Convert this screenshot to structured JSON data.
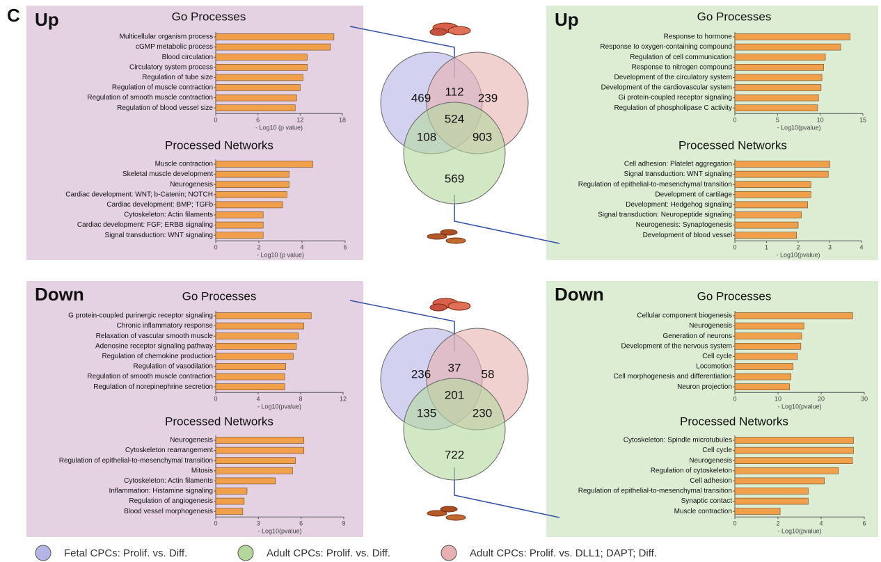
{
  "figure_label": "C",
  "panels": [
    {
      "heading": "Up"
    },
    {
      "heading": "Up"
    },
    {
      "heading": "Down"
    },
    {
      "heading": "Down"
    }
  ],
  "chart_data": [
    {
      "type": "barh",
      "title": "Go Processes",
      "x_label": "- Log10 (p value)",
      "color": "#f0a04a",
      "categories": [
        "Multicellular organism process",
        "cGMP metabolic process",
        "Blood circulation",
        "Circulatory system process",
        "Regulation of tube size",
        "Regulation of muscle contraction",
        "Regulation of smooth muscle contraction",
        "Regulation of blood vessel size"
      ],
      "values": [
        16.8,
        16.3,
        13.0,
        13.0,
        12.4,
        12.0,
        11.5,
        11.3
      ],
      "xlim": [
        0,
        18
      ],
      "xticks": [
        0,
        6,
        12,
        18
      ]
    },
    {
      "type": "barh",
      "title": "Processed Networks",
      "x_label": "- Log10 (p value)",
      "color": "#f0a04a",
      "categories": [
        "Muscle contraction",
        "Skeletal muscle development",
        "Neurogenesis",
        "Cardiac development: WNT; b-Catenin; NOTCH",
        "Cardiac development: BMP; TGFb",
        "Cytoskeleton: Actin filaments",
        "Cardiac development: FGF; ERBB signaling",
        "Signal transduction: WNT signaling"
      ],
      "values": [
        4.5,
        3.4,
        3.4,
        3.3,
        3.1,
        2.2,
        2.2,
        2.2
      ],
      "xlim": [
        0,
        6
      ],
      "xticks": [
        0,
        2,
        4,
        6
      ]
    },
    {
      "type": "barh",
      "title": "Go Processes",
      "x_label": "- Log10(pvalue)",
      "color": "#f0a04a",
      "categories": [
        "Response to hormone",
        "Response to oxygen-containing compound",
        "Regulation of cell communication",
        "Response to nitrogen compound",
        "Development of the circulatory system",
        "Development of the cardiovascular system",
        "Gi protein-coupled receptor signaling",
        "Regulation of phospholipase C activity"
      ],
      "values": [
        13.5,
        12.4,
        10.6,
        10.4,
        10.2,
        10.1,
        9.8,
        9.7
      ],
      "xlim": [
        0,
        15
      ],
      "xticks": [
        0,
        5,
        10,
        15
      ]
    },
    {
      "type": "barh",
      "title": "Processed Networks",
      "x_label": "- Log10(pvalue)",
      "color": "#f0a04a",
      "categories": [
        "Cell adhesion: Platelet aggregation",
        "Signal transduction: WNT signaling",
        "Regulation of epithelial-to-mesenchymal transition",
        "Development of cartilage",
        "Development: Hedgehog signaling",
        "Signal transduction: Neuropeptide signaling",
        "Neurogenesis: Synaptogenesis",
        "Development of blood vessel"
      ],
      "values": [
        3.0,
        2.95,
        2.4,
        2.4,
        2.3,
        2.1,
        2.0,
        1.95
      ],
      "xlim": [
        0,
        4
      ],
      "xticks": [
        0,
        1,
        2,
        3,
        4
      ]
    },
    {
      "type": "barh",
      "title": "Go Processes",
      "x_label": "- Log10(pvalue)",
      "color": "#f0a04a",
      "categories": [
        "G protein-coupled purinergic receptor signaling",
        "Chronic inflammatory response",
        "Relaxation of vascular smooth muscle",
        "Adenosine receptor signaling pathway",
        "Regulation of chemokine production",
        "Regulation of vasodilation",
        "Regulation of smooth muscle contraction",
        "Regulation of norepinephrine secretion"
      ],
      "values": [
        9.0,
        8.3,
        7.8,
        7.6,
        7.3,
        6.6,
        6.5,
        6.5
      ],
      "xlim": [
        0,
        12
      ],
      "xticks": [
        0,
        4,
        8,
        12
      ]
    },
    {
      "type": "barh",
      "title": "Processed Networks",
      "x_label": "- Log10(pvalue)",
      "color": "#f0a04a",
      "categories": [
        "Neurogenesis",
        "Cytoskeleton rearrangement",
        "Regulation of epithelial-to-mesenchymal transition",
        "Mitosis",
        "Cytoskeleton: Actin filaments",
        "Inflammation: Histamine signaling",
        "Regulation of angiogenesis",
        "Blood vessel morphogenesis"
      ],
      "values": [
        6.2,
        6.2,
        5.6,
        5.4,
        4.2,
        2.2,
        2.0,
        1.9
      ],
      "xlim": [
        0,
        9
      ],
      "xticks": [
        0,
        3,
        6,
        9
      ]
    },
    {
      "type": "barh",
      "title": "Go Processes",
      "x_label": "- Log10(pvalue)",
      "color": "#f0a04a",
      "categories": [
        "Cellular component biogenesis",
        "Neurogenesis",
        "Generation of neurons",
        "Development of the nervous system",
        "Cell cycle",
        "Locomotion",
        "Cell morphogenesis and differentiation",
        "Neuron projection"
      ],
      "values": [
        27.3,
        16.0,
        15.5,
        15.3,
        14.5,
        13.5,
        13.0,
        12.7
      ],
      "xlim": [
        0,
        30
      ],
      "xticks": [
        0,
        10,
        20,
        30
      ]
    },
    {
      "type": "barh",
      "title": "Processed Networks",
      "x_label": "- Log10(pvalue)",
      "color": "#f0a04a",
      "categories": [
        "Cytoskeleton: Spindle microtubules",
        "Cell cycle",
        "Neurogenesis",
        "Regulation of cytoskeleton",
        "Cell adhesion",
        "Regulation of epithelial-to-mesenchymal transition",
        "Synaptic contact",
        "Muscle contraction"
      ],
      "values": [
        5.5,
        5.5,
        5.45,
        4.8,
        4.15,
        3.4,
        3.4,
        2.1
      ],
      "xlim": [
        0,
        6
      ],
      "xticks": [
        0,
        2,
        4,
        6
      ]
    }
  ],
  "venns": [
    {
      "counts": [
        469,
        112,
        239,
        524,
        108,
        903,
        569
      ]
    },
    {
      "counts": [
        236,
        37,
        58,
        201,
        135,
        230,
        722
      ]
    }
  ],
  "legend": [
    {
      "label": "Fetal CPCs: Prolif. vs. Diff.",
      "color": "#b4b4e6"
    },
    {
      "label": "Adult CPCs: Prolif. vs. Diff.",
      "color": "#b4d89c"
    },
    {
      "label": "Adult CPCs: Prolif. vs. DLL1; DAPT; Diff.",
      "color": "#e8b0b0"
    }
  ]
}
